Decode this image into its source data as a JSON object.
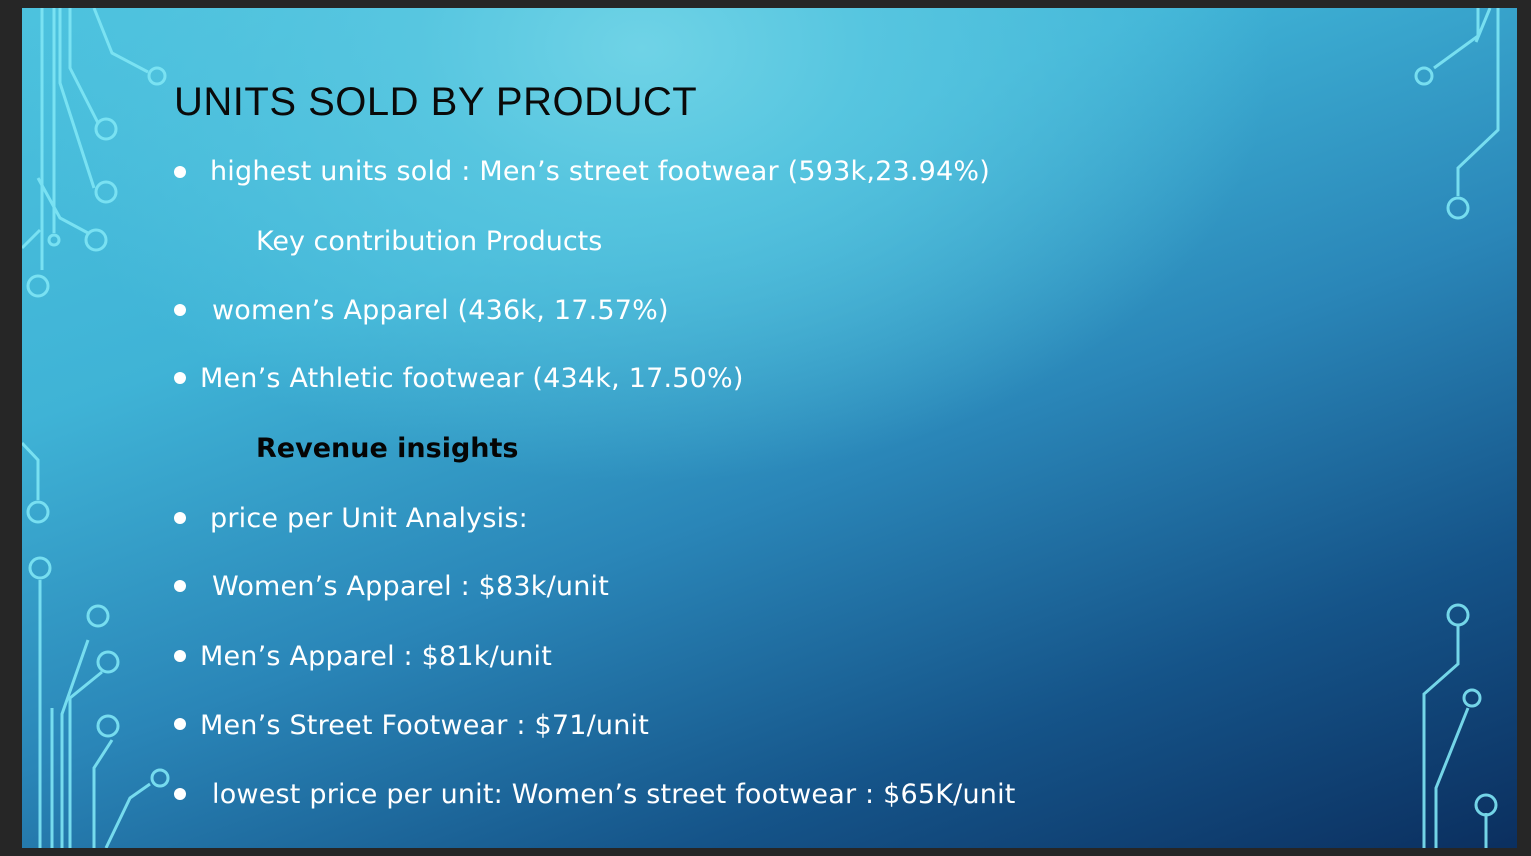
{
  "slide": {
    "title": "UNITS SOLD BY PRODUCT",
    "items": [
      {
        "kind": "bullet",
        "text": "highest units sold : Men’s street footwear (593k,23.94%)"
      },
      {
        "kind": "subheading",
        "text": "Key contribution Products"
      },
      {
        "kind": "bullet",
        "text": "women’s Apparel (436k, 17.57%)"
      },
      {
        "kind": "bullet",
        "text": "Men’s Athletic footwear (434k, 17.50%)"
      },
      {
        "kind": "subheading-bold",
        "text": "Revenue insights"
      },
      {
        "kind": "bullet",
        "text": "price per Unit Analysis:"
      },
      {
        "kind": "bullet",
        "text": "Women’s Apparel : $83k/unit"
      },
      {
        "kind": "bullet",
        "text": "Men’s Apparel : $81k/unit"
      },
      {
        "kind": "bullet",
        "text": "Men’s Street Footwear : $71/unit"
      },
      {
        "kind": "bullet",
        "text": "lowest price per unit: Women’s street footwear : $65K/unit"
      }
    ]
  },
  "colors": {
    "title": "#0a0a0a",
    "body_text": "#ffffff",
    "bold_heading": "#050505",
    "circuit_line": "#7fe6f5"
  }
}
